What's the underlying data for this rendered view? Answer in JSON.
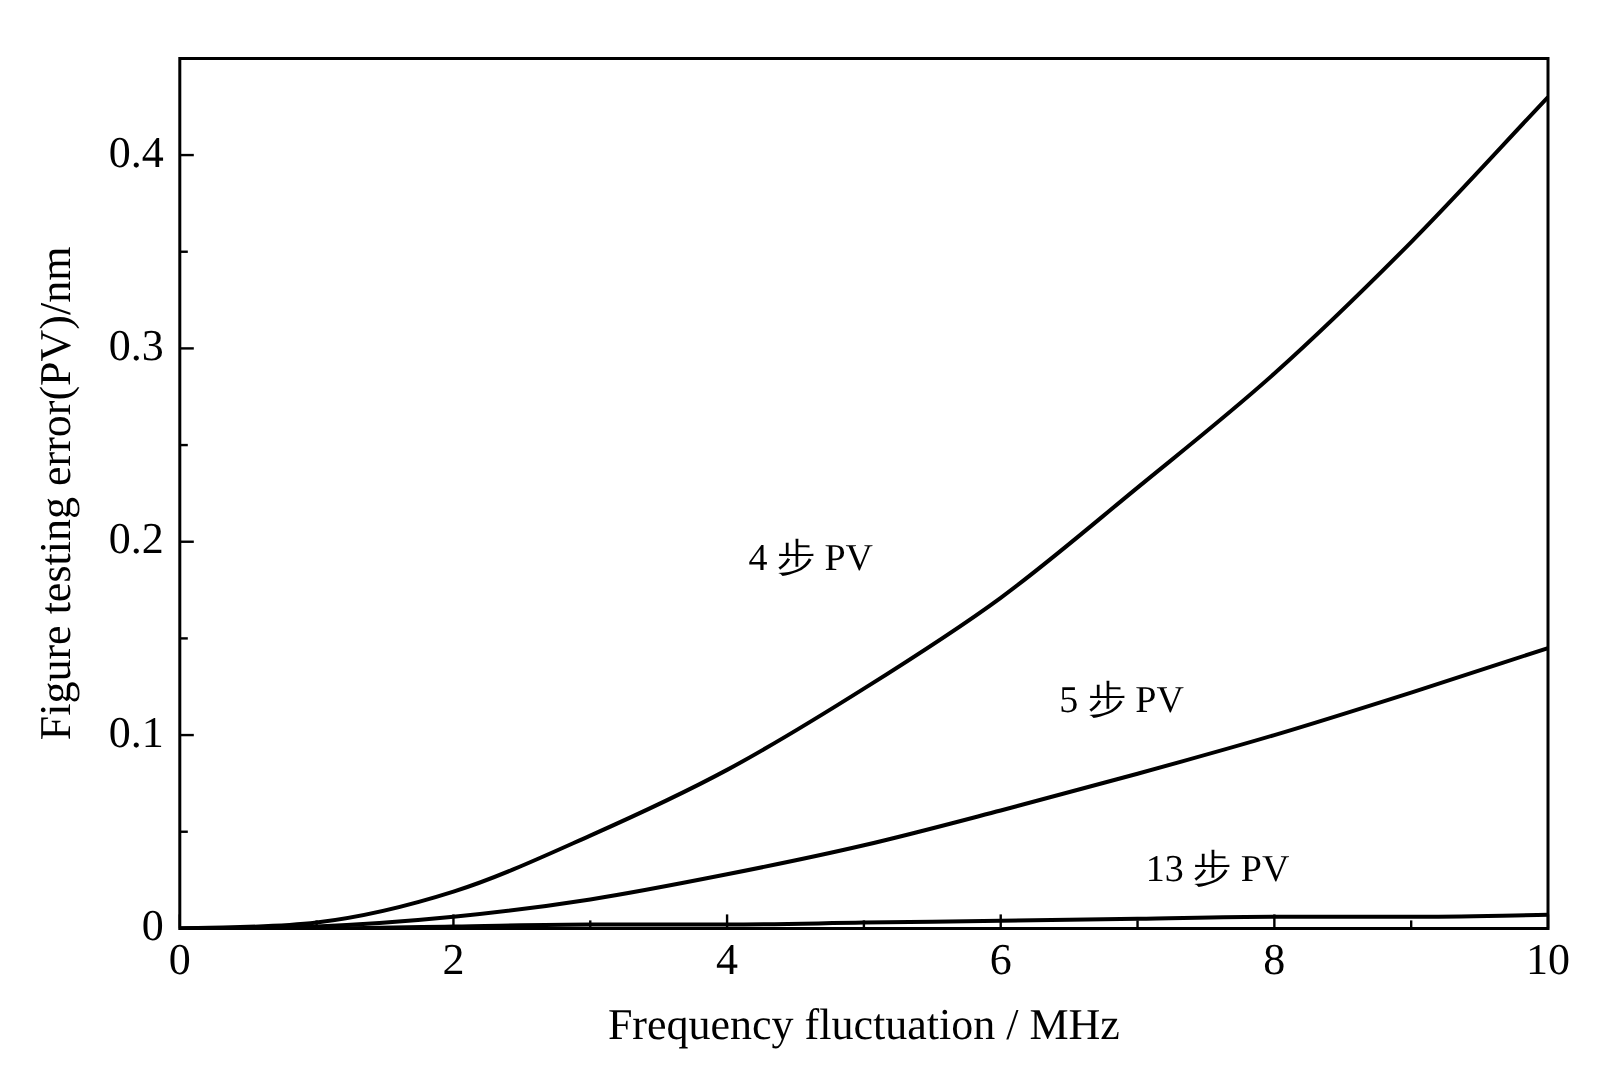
{
  "chart_data": {
    "type": "line",
    "xlabel": "Frequency fluctuation / MHz",
    "ylabel": "Figure testing error(PV)/nm",
    "x": [
      0,
      1,
      2,
      3,
      4,
      5,
      6,
      7,
      8,
      9,
      10
    ],
    "series": [
      {
        "name": "4 步 PV",
        "color": "#000000",
        "values": [
          0,
          0.003,
          0.019,
          0.048,
          0.082,
          0.124,
          0.171,
          0.228,
          0.287,
          0.355,
          0.43
        ]
      },
      {
        "name": "5 步 PV",
        "color": "#000000",
        "values": [
          0,
          0.001,
          0.006,
          0.015,
          0.028,
          0.043,
          0.061,
          0.08,
          0.1,
          0.122,
          0.145
        ]
      },
      {
        "name": "13 步 PV",
        "color": "#000000",
        "values": [
          0,
          0,
          0.001,
          0.002,
          0.002,
          0.003,
          0.004,
          0.005,
          0.006,
          0.006,
          0.007
        ]
      }
    ],
    "xlim": [
      0,
      10
    ],
    "ylim": [
      0,
      0.45
    ],
    "xticks": [
      0,
      {
        "value": 1,
        "label": null
      },
      2,
      {
        "value": 3,
        "label": null
      },
      4,
      {
        "value": 5,
        "label": null
      },
      6,
      {
        "value": 7,
        "label": null
      },
      8,
      {
        "value": 9,
        "label": null
      },
      10
    ],
    "yticks": [
      0,
      {
        "value": 0.05,
        "label": null
      },
      0.1,
      {
        "value": 0.15,
        "label": null
      },
      0.2,
      {
        "value": 0.25,
        "label": null
      },
      0.3,
      {
        "value": 0.35,
        "label": null
      },
      0.4
    ],
    "marker": "none",
    "line_style": "solid",
    "legend": false
  }
}
